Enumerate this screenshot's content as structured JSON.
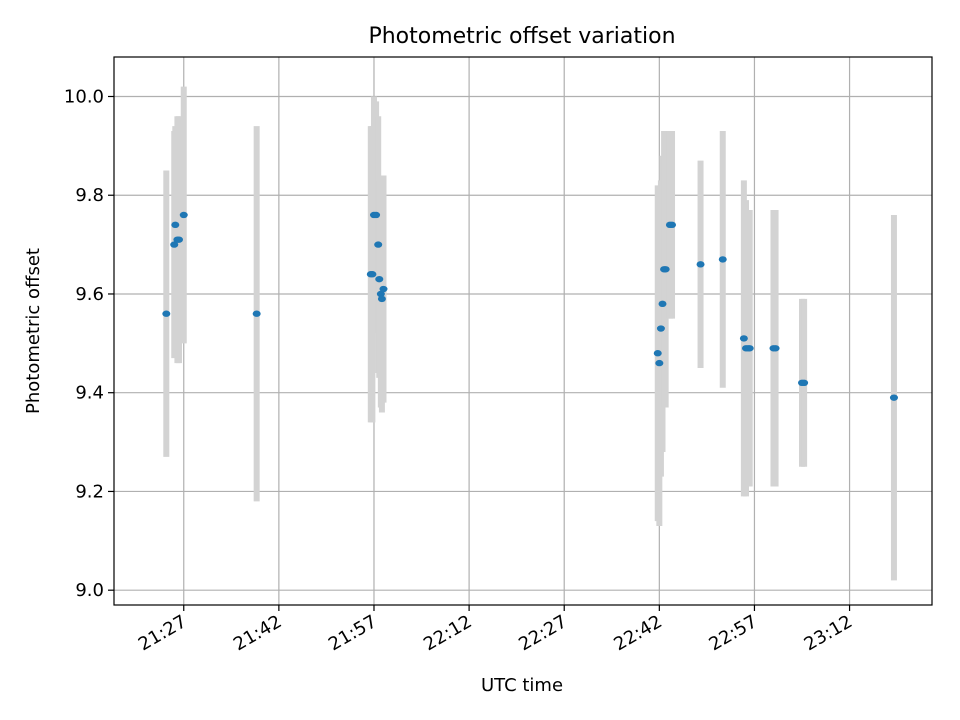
{
  "chart_data": {
    "type": "scatter",
    "title": "Photometric offset variation",
    "xlabel": "UTC time",
    "ylabel": "Photometric offset",
    "xlim": [
      "21:16",
      "23:25"
    ],
    "ylim": [
      8.97,
      10.08
    ],
    "x_ticks": [
      "21:27",
      "21:42",
      "21:57",
      "22:12",
      "22:27",
      "22:42",
      "22:57",
      "23:12"
    ],
    "y_ticks": [
      9.0,
      9.2,
      9.4,
      9.6,
      9.8,
      10.0
    ],
    "grid": true,
    "error_bar_color": "#d3d3d3",
    "point_color": "#1f77b4",
    "points": [
      {
        "x": "21:24:15",
        "y": 9.56,
        "err": 0.29
      },
      {
        "x": "21:25:30",
        "y": 9.7,
        "err": 0.23
      },
      {
        "x": "21:25:40",
        "y": 9.74,
        "err": 0.2
      },
      {
        "x": "21:26:00",
        "y": 9.71,
        "err": 0.25
      },
      {
        "x": "21:26:15",
        "y": 9.71,
        "err": 0.25
      },
      {
        "x": "21:27:00",
        "y": 9.76,
        "err": 0.26
      },
      {
        "x": "21:38:30",
        "y": 9.56,
        "err": 0.38
      },
      {
        "x": "21:56:30",
        "y": 9.64,
        "err": 0.3
      },
      {
        "x": "21:56:45",
        "y": 9.64,
        "err": 0.3
      },
      {
        "x": "21:57:00",
        "y": 9.76,
        "err": 0.24
      },
      {
        "x": "21:57:20",
        "y": 9.76,
        "err": 0.23
      },
      {
        "x": "21:57:40",
        "y": 9.7,
        "err": 0.26
      },
      {
        "x": "21:57:50",
        "y": 9.63,
        "err": 0.2
      },
      {
        "x": "21:58:05",
        "y": 9.6,
        "err": 0.23
      },
      {
        "x": "21:58:15",
        "y": 9.59,
        "err": 0.23
      },
      {
        "x": "21:58:30",
        "y": 9.61,
        "err": 0.23
      },
      {
        "x": "22:41:45",
        "y": 9.48,
        "err": 0.34
      },
      {
        "x": "22:42:00",
        "y": 9.46,
        "err": 0.33
      },
      {
        "x": "22:42:15",
        "y": 9.53,
        "err": 0.3
      },
      {
        "x": "22:42:30",
        "y": 9.58,
        "err": 0.3
      },
      {
        "x": "22:42:45",
        "y": 9.65,
        "err": 0.28
      },
      {
        "x": "22:43:00",
        "y": 9.65,
        "err": 0.28
      },
      {
        "x": "22:43:40",
        "y": 9.74,
        "err": 0.19
      },
      {
        "x": "22:44:00",
        "y": 9.74,
        "err": 0.19
      },
      {
        "x": "22:48:30",
        "y": 9.66,
        "err": 0.21
      },
      {
        "x": "22:52:00",
        "y": 9.67,
        "err": 0.26
      },
      {
        "x": "22:55:20",
        "y": 9.51,
        "err": 0.32
      },
      {
        "x": "22:55:40",
        "y": 9.49,
        "err": 0.3
      },
      {
        "x": "22:56:00",
        "y": 9.49,
        "err": 0.28
      },
      {
        "x": "22:56:15",
        "y": 9.49,
        "err": 0.28
      },
      {
        "x": "23:00:00",
        "y": 9.49,
        "err": 0.28
      },
      {
        "x": "23:00:20",
        "y": 9.49,
        "err": 0.28
      },
      {
        "x": "23:04:30",
        "y": 9.42,
        "err": 0.17
      },
      {
        "x": "23:04:50",
        "y": 9.42,
        "err": 0.17
      },
      {
        "x": "23:19:00",
        "y": 9.39,
        "err": 0.37
      }
    ]
  }
}
